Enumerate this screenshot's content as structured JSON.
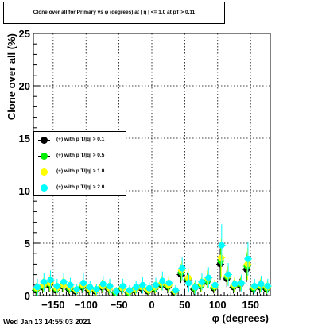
{
  "title": "Clone  over all for Primary vs φ (degrees) at | η | <= 1.0 at pT > 0.11",
  "timestamp": "Wed Jan 13 14:55:03 2021",
  "chart_data": {
    "type": "scatter",
    "xlabel": "φ (degrees)",
    "ylabel": "Clone  over all (%)",
    "xlim": [
      -180,
      180
    ],
    "ylim": [
      0,
      25
    ],
    "grid": true,
    "legend_position": "left-middle",
    "x_ticks": [
      -150,
      -100,
      -50,
      0,
      50,
      100,
      150
    ],
    "x_tick_labels": [
      "−150",
      "−100",
      "−50",
      "0",
      "50",
      "100",
      "150"
    ],
    "y_ticks": [
      0,
      5,
      10,
      15,
      20,
      25
    ],
    "y_tick_labels": [
      "0",
      "5",
      "10",
      "15",
      "20",
      "25"
    ],
    "x": [
      -175,
      -165,
      -155,
      -145,
      -135,
      -125,
      -115,
      -105,
      -95,
      -85,
      -75,
      -65,
      -55,
      -45,
      -35,
      -25,
      -15,
      -5,
      5,
      15,
      25,
      35,
      45,
      55,
      65,
      75,
      85,
      95,
      105,
      115,
      125,
      135,
      145,
      155,
      165,
      175
    ],
    "series": [
      {
        "name": "(+) with p T/|q| > 0.1",
        "color": "#000000",
        "values": [
          0.5,
          0.8,
          1.0,
          0.5,
          0.9,
          0.6,
          0.4,
          0.8,
          0.5,
          0.4,
          0.8,
          0.6,
          0.3,
          0.6,
          0.3,
          0.5,
          0.7,
          0.4,
          0.6,
          1.0,
          0.8,
          0.3,
          2.0,
          1.5,
          0.6,
          0.9,
          1.3,
          0.7,
          3.0,
          1.6,
          0.8,
          1.0,
          2.5,
          0.6,
          0.8,
          0.6
        ],
        "errors": [
          0.6,
          0.6,
          0.7,
          0.5,
          0.6,
          0.5,
          0.4,
          0.6,
          0.5,
          0.4,
          0.6,
          0.5,
          0.3,
          0.5,
          0.3,
          0.4,
          0.5,
          0.4,
          0.5,
          0.6,
          0.6,
          0.3,
          0.8,
          0.7,
          0.5,
          0.6,
          0.7,
          0.5,
          1.5,
          0.8,
          0.6,
          0.6,
          1.2,
          0.5,
          0.6,
          0.5
        ]
      },
      {
        "name": "(+) with p T/|q| > 0.5",
        "color": "#00ee00",
        "values": [
          0.6,
          0.9,
          1.1,
          0.6,
          1.0,
          0.7,
          0.5,
          0.9,
          0.6,
          0.5,
          0.9,
          0.7,
          0.3,
          0.7,
          0.3,
          0.6,
          0.8,
          0.5,
          0.7,
          1.1,
          0.9,
          0.4,
          2.2,
          1.6,
          0.7,
          1.0,
          1.4,
          0.8,
          3.3,
          1.8,
          0.9,
          1.1,
          2.8,
          0.7,
          0.9,
          0.7
        ],
        "errors": [
          0.6,
          0.6,
          0.7,
          0.5,
          0.6,
          0.5,
          0.4,
          0.6,
          0.5,
          0.4,
          0.6,
          0.5,
          0.3,
          0.5,
          0.3,
          0.4,
          0.5,
          0.4,
          0.5,
          0.6,
          0.6,
          0.3,
          0.8,
          0.7,
          0.5,
          0.6,
          0.7,
          0.5,
          1.6,
          0.8,
          0.6,
          0.6,
          1.3,
          0.5,
          0.6,
          0.5
        ]
      },
      {
        "name": "(+) with p T/|q| > 1.0",
        "color": "#ffff00",
        "values": [
          0.7,
          1.0,
          1.2,
          0.7,
          1.0,
          0.8,
          0.5,
          1.0,
          0.6,
          0.5,
          0.9,
          0.7,
          0.4,
          0.7,
          0.4,
          0.6,
          0.8,
          0.5,
          0.8,
          1.2,
          1.0,
          0.4,
          2.4,
          1.7,
          0.8,
          1.1,
          1.6,
          0.9,
          3.6,
          1.9,
          1.0,
          1.2,
          3.0,
          0.8,
          1.0,
          0.8
        ],
        "errors": [
          0.7,
          0.7,
          0.8,
          0.6,
          0.7,
          0.6,
          0.5,
          0.7,
          0.5,
          0.5,
          0.7,
          0.6,
          0.4,
          0.6,
          0.4,
          0.5,
          0.6,
          0.5,
          0.6,
          0.7,
          0.7,
          0.4,
          0.9,
          0.8,
          0.6,
          0.7,
          0.8,
          0.6,
          1.8,
          0.9,
          0.7,
          0.7,
          1.5,
          0.6,
          0.7,
          0.6
        ]
      },
      {
        "name": "(+) with p T/|q| > 2.0",
        "color": "#00ffff",
        "values": [
          0.8,
          1.3,
          1.5,
          0.9,
          1.3,
          1.0,
          0.6,
          1.2,
          0.8,
          0.6,
          1.1,
          0.9,
          0.4,
          0.9,
          0.5,
          0.8,
          1.0,
          0.7,
          1.0,
          1.4,
          1.2,
          0.5,
          2.6,
          1.2,
          0.8,
          1.3,
          1.7,
          1.0,
          4.8,
          2.0,
          1.1,
          1.2,
          3.5,
          0.9,
          1.1,
          0.9
        ],
        "errors": [
          0.8,
          0.9,
          0.9,
          0.7,
          0.9,
          0.7,
          0.5,
          0.9,
          0.6,
          0.5,
          0.8,
          0.7,
          0.4,
          0.7,
          0.5,
          0.6,
          0.8,
          0.6,
          0.7,
          0.9,
          0.8,
          0.5,
          1.1,
          0.9,
          0.7,
          0.8,
          1.0,
          0.8,
          2.0,
          1.1,
          0.8,
          0.8,
          1.6,
          0.7,
          0.8,
          0.7
        ]
      }
    ]
  }
}
